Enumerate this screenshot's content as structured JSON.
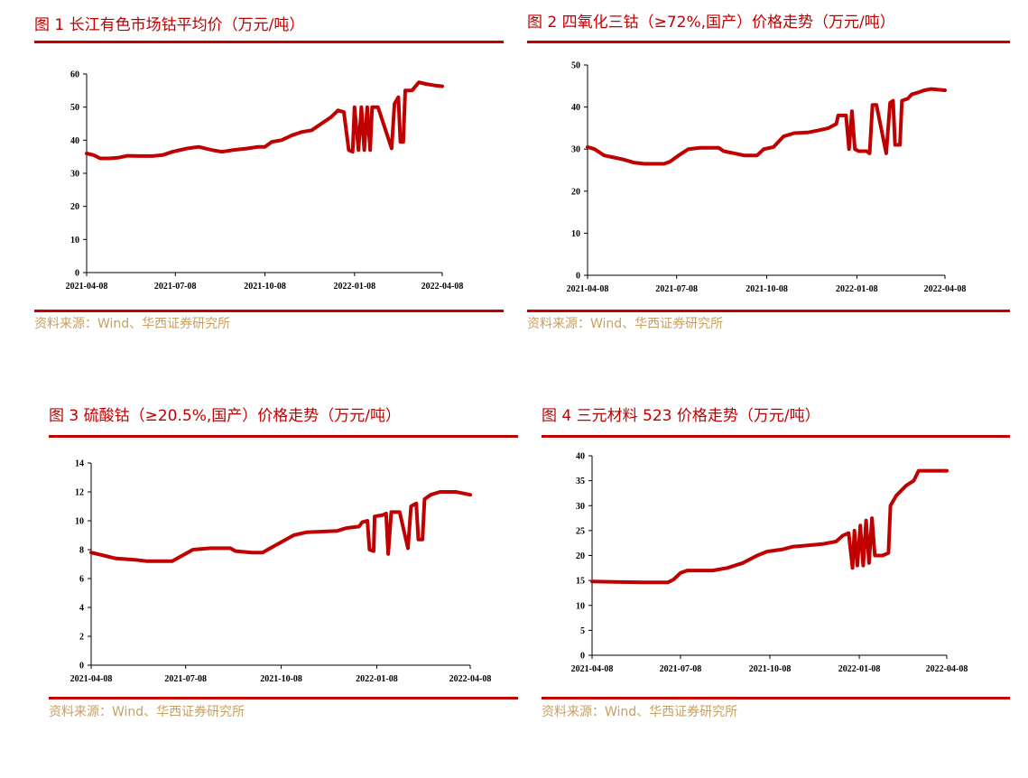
{
  "panels": [
    {
      "title": "图 1 长江有色市场钴平均价（万元/吨）",
      "source": "资料来源：Wind、华西证券研究所",
      "chart_data": {
        "type": "line",
        "ylim": [
          0,
          60
        ],
        "yticks": [
          0,
          10,
          20,
          30,
          40,
          50,
          60
        ],
        "xlim": [
          "2021-04-08",
          "2022-04-08"
        ],
        "xticks": [
          "2021-04-08",
          "2021-07-08",
          "2021-10-08",
          "2022-01-08",
          "2022-04-08"
        ],
        "color": "#c00000",
        "points": [
          [
            "2021-04-08",
            36
          ],
          [
            "2021-04-15",
            35.5
          ],
          [
            "2021-04-22",
            34.5
          ],
          [
            "2021-05-01",
            34.5
          ],
          [
            "2021-05-10",
            34.7
          ],
          [
            "2021-05-20",
            35.3
          ],
          [
            "2021-06-01",
            35.2
          ],
          [
            "2021-06-15",
            35.2
          ],
          [
            "2021-06-25",
            35.5
          ],
          [
            "2021-07-05",
            36.5
          ],
          [
            "2021-07-20",
            37.5
          ],
          [
            "2021-08-01",
            38
          ],
          [
            "2021-08-15",
            37
          ],
          [
            "2021-08-25",
            36.5
          ],
          [
            "2021-09-05",
            37
          ],
          [
            "2021-09-20",
            37.5
          ],
          [
            "2021-10-01",
            38
          ],
          [
            "2021-10-08",
            38
          ],
          [
            "2021-10-15",
            39.5
          ],
          [
            "2021-10-25",
            40
          ],
          [
            "2021-11-05",
            41.5
          ],
          [
            "2021-11-15",
            42.5
          ],
          [
            "2021-11-25",
            43
          ],
          [
            "2021-12-05",
            45
          ],
          [
            "2021-12-15",
            47
          ],
          [
            "2021-12-22",
            49
          ],
          [
            "2021-12-28",
            48.5
          ],
          [
            "2022-01-02",
            37
          ],
          [
            "2022-01-06",
            36.5
          ],
          [
            "2022-01-08",
            50
          ],
          [
            "2022-01-12",
            37
          ],
          [
            "2022-01-15",
            50
          ],
          [
            "2022-01-18",
            37
          ],
          [
            "2022-01-21",
            50
          ],
          [
            "2022-01-24",
            37
          ],
          [
            "2022-01-26",
            50
          ],
          [
            "2022-02-01",
            50
          ],
          [
            "2022-02-15",
            37.5
          ],
          [
            "2022-02-18",
            51
          ],
          [
            "2022-02-22",
            53
          ],
          [
            "2022-02-24",
            39.5
          ],
          [
            "2022-02-27",
            39.5
          ],
          [
            "2022-03-01",
            55
          ],
          [
            "2022-03-08",
            55
          ],
          [
            "2022-03-15",
            57.5
          ],
          [
            "2022-03-22",
            57
          ],
          [
            "2022-04-01",
            56.5
          ],
          [
            "2022-04-08",
            56.3
          ]
        ]
      }
    },
    {
      "title": "图 2 四氧化三钴（≥72%,国产）价格走势（万元/吨）",
      "source": "资料来源：Wind、华西证券研究所",
      "chart_data": {
        "type": "line",
        "ylim": [
          0,
          50
        ],
        "yticks": [
          0,
          10,
          20,
          30,
          40,
          50
        ],
        "xlim": [
          "2021-04-08",
          "2022-04-08"
        ],
        "xticks": [
          "2021-04-08",
          "2021-07-08",
          "2021-10-08",
          "2022-01-08",
          "2022-04-08"
        ],
        "color": "#c00000",
        "points": [
          [
            "2021-04-08",
            30.5
          ],
          [
            "2021-04-15",
            30
          ],
          [
            "2021-04-25",
            28.5
          ],
          [
            "2021-05-05",
            28
          ],
          [
            "2021-05-15",
            27.5
          ],
          [
            "2021-05-25",
            26.8
          ],
          [
            "2021-06-05",
            26.5
          ],
          [
            "2021-06-25",
            26.5
          ],
          [
            "2021-07-01",
            27
          ],
          [
            "2021-07-10",
            28.5
          ],
          [
            "2021-07-20",
            30
          ],
          [
            "2021-08-01",
            30.3
          ],
          [
            "2021-08-20",
            30.3
          ],
          [
            "2021-08-25",
            29.5
          ],
          [
            "2021-09-05",
            29
          ],
          [
            "2021-09-15",
            28.5
          ],
          [
            "2021-09-28",
            28.5
          ],
          [
            "2021-10-05",
            30
          ],
          [
            "2021-10-15",
            30.5
          ],
          [
            "2021-10-25",
            33
          ],
          [
            "2021-11-05",
            33.8
          ],
          [
            "2021-11-20",
            34
          ],
          [
            "2021-12-01",
            34.5
          ],
          [
            "2021-12-10",
            35
          ],
          [
            "2021-12-18",
            36
          ],
          [
            "2021-12-20",
            38
          ],
          [
            "2021-12-28",
            38
          ],
          [
            "2021-12-31",
            30
          ],
          [
            "2022-01-03",
            39
          ],
          [
            "2022-01-06",
            30
          ],
          [
            "2022-01-10",
            29.5
          ],
          [
            "2022-01-18",
            29.5
          ],
          [
            "2022-01-21",
            29
          ],
          [
            "2022-01-24",
            40.5
          ],
          [
            "2022-01-28",
            40.5
          ],
          [
            "2022-02-07",
            29
          ],
          [
            "2022-02-11",
            41
          ],
          [
            "2022-02-14",
            41.5
          ],
          [
            "2022-02-16",
            31
          ],
          [
            "2022-02-21",
            31
          ],
          [
            "2022-02-23",
            41.5
          ],
          [
            "2022-03-01",
            42
          ],
          [
            "2022-03-05",
            43
          ],
          [
            "2022-03-12",
            43.5
          ],
          [
            "2022-03-18",
            44
          ],
          [
            "2022-03-25",
            44.3
          ],
          [
            "2022-04-08",
            44
          ]
        ]
      }
    },
    {
      "title": "图 3 硫酸钴（≥20.5%,国产）价格走势（万元/吨）",
      "source": "资料来源：Wind、华西证券研究所",
      "chart_data": {
        "type": "line",
        "ylim": [
          0,
          14
        ],
        "yticks": [
          0,
          2,
          4,
          6,
          8,
          10,
          12,
          14
        ],
        "xlim": [
          "2021-04-08",
          "2022-04-08"
        ],
        "xticks": [
          "2021-04-08",
          "2021-07-08",
          "2021-10-08",
          "2022-01-08",
          "2022-04-08"
        ],
        "color": "#c00000",
        "points": [
          [
            "2021-04-08",
            7.8
          ],
          [
            "2021-04-20",
            7.6
          ],
          [
            "2021-05-01",
            7.4
          ],
          [
            "2021-05-20",
            7.3
          ],
          [
            "2021-06-01",
            7.2
          ],
          [
            "2021-06-25",
            7.2
          ],
          [
            "2021-07-05",
            7.6
          ],
          [
            "2021-07-15",
            8
          ],
          [
            "2021-08-01",
            8.1
          ],
          [
            "2021-08-20",
            8.1
          ],
          [
            "2021-08-25",
            7.9
          ],
          [
            "2021-09-10",
            7.8
          ],
          [
            "2021-09-20",
            7.8
          ],
          [
            "2021-09-30",
            8.2
          ],
          [
            "2021-10-10",
            8.6
          ],
          [
            "2021-10-20",
            9
          ],
          [
            "2021-11-01",
            9.2
          ],
          [
            "2021-12-01",
            9.3
          ],
          [
            "2021-12-10",
            9.5
          ],
          [
            "2021-12-22",
            9.6
          ],
          [
            "2021-12-25",
            9.9
          ],
          [
            "2021-12-30",
            10
          ],
          [
            "2022-01-01",
            8
          ],
          [
            "2022-01-05",
            7.9
          ],
          [
            "2022-01-06",
            10.3
          ],
          [
            "2022-01-14",
            10.4
          ],
          [
            "2022-01-17",
            10.5
          ],
          [
            "2022-01-19",
            7.7
          ],
          [
            "2022-01-22",
            10.6
          ],
          [
            "2022-01-30",
            10.6
          ],
          [
            "2022-02-07",
            8.1
          ],
          [
            "2022-02-10",
            11
          ],
          [
            "2022-02-15",
            11.2
          ],
          [
            "2022-02-17",
            8.7
          ],
          [
            "2022-02-21",
            8.7
          ],
          [
            "2022-02-23",
            11.5
          ],
          [
            "2022-03-01",
            11.8
          ],
          [
            "2022-03-10",
            12
          ],
          [
            "2022-03-25",
            12
          ],
          [
            "2022-04-01",
            11.9
          ],
          [
            "2022-04-08",
            11.8
          ]
        ]
      }
    },
    {
      "title": "图 4 三元材料 523 价格走势（万元/吨）",
      "source": "资料来源：Wind、华西证券研究所",
      "chart_data": {
        "type": "line",
        "ylim": [
          0,
          40
        ],
        "yticks": [
          0,
          5,
          10,
          15,
          20,
          25,
          30,
          35,
          40
        ],
        "xlim": [
          "2021-04-08",
          "2022-04-08"
        ],
        "xticks": [
          "2021-04-08",
          "2021-07-08",
          "2021-10-08",
          "2022-01-08",
          "2022-04-08"
        ],
        "color": "#c00000",
        "points": [
          [
            "2021-04-08",
            14.8
          ],
          [
            "2021-05-01",
            14.7
          ],
          [
            "2021-06-01",
            14.6
          ],
          [
            "2021-06-25",
            14.6
          ],
          [
            "2021-07-01",
            15.2
          ],
          [
            "2021-07-08",
            16.5
          ],
          [
            "2021-07-15",
            17
          ],
          [
            "2021-08-10",
            17
          ],
          [
            "2021-08-25",
            17.5
          ],
          [
            "2021-09-10",
            18.5
          ],
          [
            "2021-09-25",
            20
          ],
          [
            "2021-10-05",
            20.8
          ],
          [
            "2021-10-20",
            21.2
          ],
          [
            "2021-11-01",
            21.8
          ],
          [
            "2021-11-15",
            22
          ],
          [
            "2021-12-01",
            22.3
          ],
          [
            "2021-12-15",
            22.8
          ],
          [
            "2021-12-22",
            24
          ],
          [
            "2021-12-28",
            24.5
          ],
          [
            "2022-01-01",
            17.5
          ],
          [
            "2022-01-03",
            25
          ],
          [
            "2022-01-06",
            18
          ],
          [
            "2022-01-09",
            26
          ],
          [
            "2022-01-12",
            18
          ],
          [
            "2022-01-15",
            27
          ],
          [
            "2022-01-18",
            18.5
          ],
          [
            "2022-01-21",
            27.5
          ],
          [
            "2022-01-24",
            20
          ],
          [
            "2022-02-01",
            20
          ],
          [
            "2022-02-07",
            20.5
          ],
          [
            "2022-02-09",
            30
          ],
          [
            "2022-02-15",
            32
          ],
          [
            "2022-02-25",
            34
          ],
          [
            "2022-03-05",
            35
          ],
          [
            "2022-03-10",
            37
          ],
          [
            "2022-03-15",
            37
          ],
          [
            "2022-04-08",
            37
          ]
        ]
      }
    }
  ]
}
